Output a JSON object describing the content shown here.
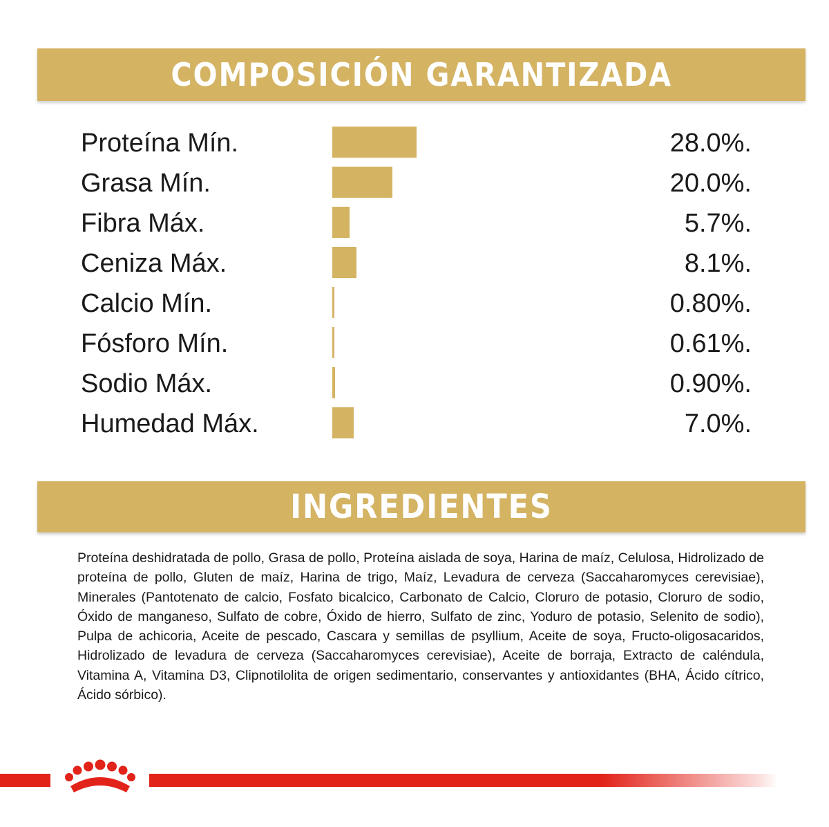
{
  "colors": {
    "gold": "#d4b363",
    "red": "#e2231a",
    "text": "#1a1a1a",
    "banner_text": "#ffffff"
  },
  "composition": {
    "title": "COMPOSICIÓN GARANTIZADA",
    "bar_scale_max_percent": 28.0,
    "rows": [
      {
        "label": "Proteína Mín.",
        "value": "28.0%.",
        "percent": 28.0
      },
      {
        "label": "Grasa Mín.",
        "value": "20.0%.",
        "percent": 20.0
      },
      {
        "label": "Fibra Máx.",
        "value": "5.7%.",
        "percent": 5.7
      },
      {
        "label": "Ceniza Máx.",
        "value": "8.1%.",
        "percent": 8.1
      },
      {
        "label": "Calcio Mín.",
        "value": "0.80%.",
        "percent": 0.8
      },
      {
        "label": "Fósforo Mín.",
        "value": "0.61%.",
        "percent": 0.61
      },
      {
        "label": "Sodio Máx.",
        "value": "0.90%.",
        "percent": 0.9
      },
      {
        "label": "Humedad Máx.",
        "value": "7.0%.",
        "percent": 7.0
      }
    ]
  },
  "ingredients": {
    "title": "INGREDIENTES",
    "text": "Proteína deshidratada de pollo, Grasa de pollo, Proteína aislada de soya, Harina de maíz, Celulosa, Hidrolizado de proteína de pollo, Gluten de maíz, Harina de trigo, Maíz, Levadura de cerveza (Saccaharomyces cerevisiae), Minerales (Pantotenato de calcio, Fosfato bicalcico, Carbonato de Calcio, Cloruro de potasio, Cloruro de sodio, Óxido de manganeso, Sulfato de cobre, Óxido de hierro, Sulfato de zinc, Yoduro de potasio, Selenito de sodio), Pulpa de achicoria, Aceite de pescado, Cascara y semillas de psyllium, Aceite de soya, Fructo-oligosacaridos, Hidrolizado de levadura de cerveza (Saccaharomyces cerevisiae), Aceite de borraja, Extracto de caléndula, Vitamina A, Vitamina D3, Clipnotilolita de origen sedimentario, conservantes y antioxidantes (BHA, Ácido cítrico, Ácido sórbico)."
  },
  "footer": {
    "logo_icon": "royal-canin-crown-icon"
  }
}
